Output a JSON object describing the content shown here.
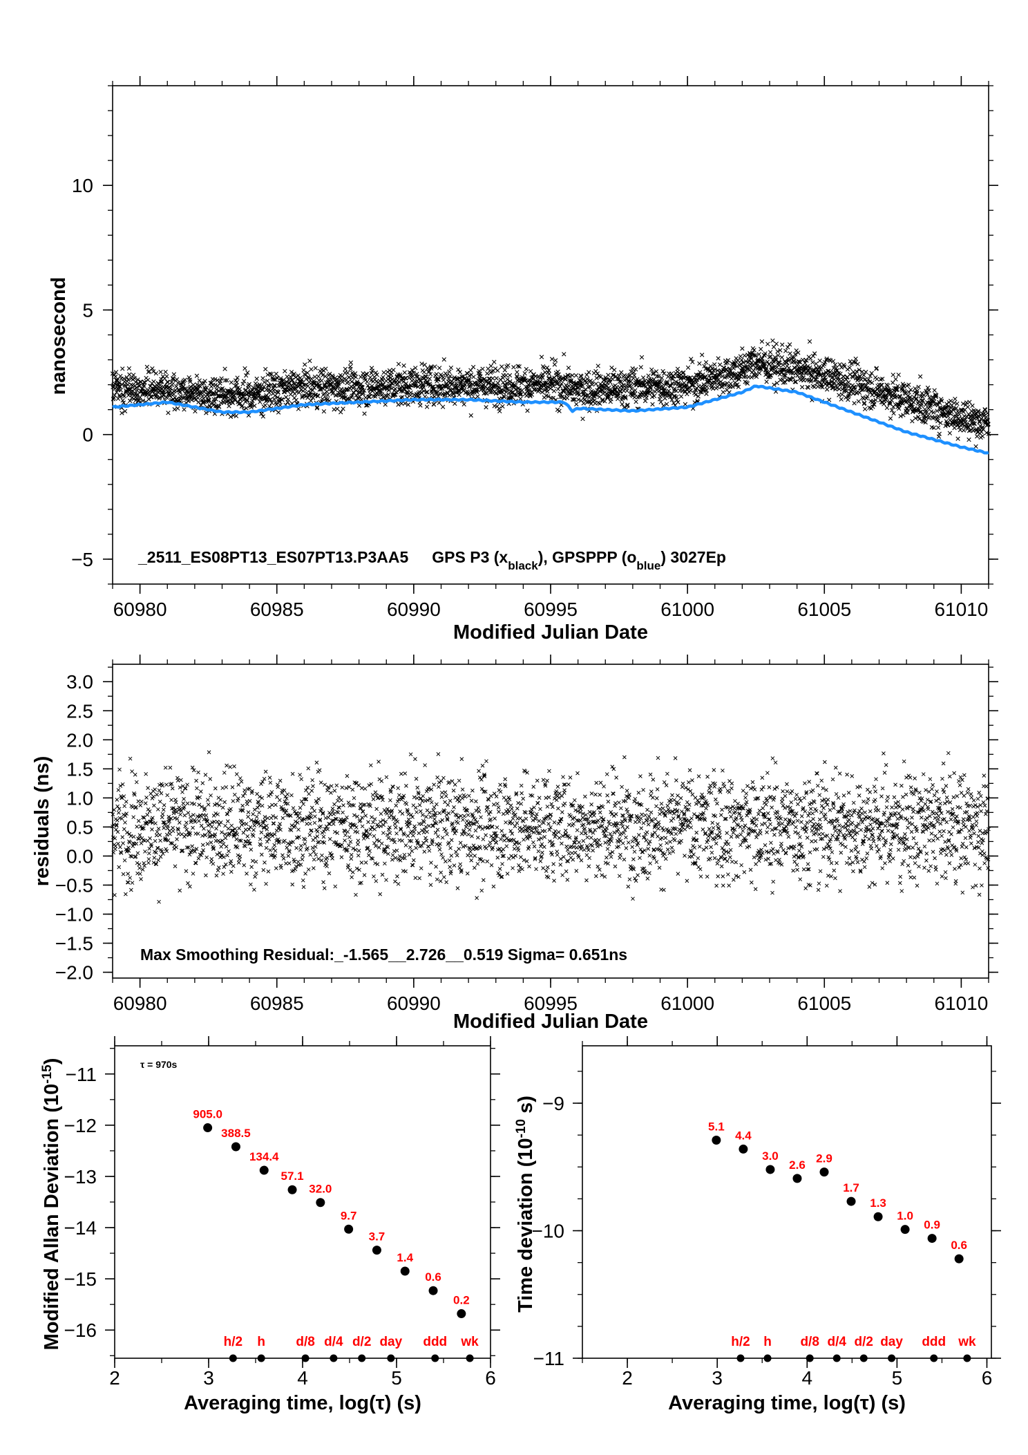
{
  "colors": {
    "black_series": "#000000",
    "blue_series": "#1e90ff",
    "label_red": "#ff0000"
  },
  "chart_data": [
    {
      "type": "scatter",
      "panel": "top",
      "annotation_name": "_2511_ES08PT13_ES07PT13.P3AA5",
      "annotation_p3": "GPS P3 (x",
      "annotation_p3_sub": "black",
      "annotation_ppp": "),  GPSPPP (o",
      "annotation_ppp_sub": "blue",
      "annotation_end": ")  3027Ep",
      "xlabel": "Modified Julian Date",
      "ylabel": "nanosecond",
      "xlim": [
        60979.0,
        61011.0
      ],
      "ylim": [
        -6.0,
        14.0
      ],
      "xticks": [
        60980,
        60985,
        60990,
        60995,
        61000,
        61005,
        61010
      ],
      "xtick_labels": [
        "60980",
        "60985",
        "60990",
        "60995",
        "61000",
        "61005",
        "61010"
      ],
      "yticks": [
        -5,
        0,
        5,
        10
      ],
      "ytick_labels": [
        "−5",
        "0",
        "5",
        "10"
      ],
      "series": [
        {
          "marker": "x",
          "color": "#000000",
          "x_range": [
            60979.0,
            61011.0
          ],
          "n_points": 3027,
          "trend_x": [
            60979.0,
            60981,
            60983,
            60984,
            60986,
            60988,
            60990,
            60992,
            60994,
            60995.5,
            60995.8,
            60996,
            60998,
            61000,
            61002,
            61002.5,
            61004,
            61006,
            61008,
            61010,
            61011.0
          ],
          "trend_y": [
            1.8,
            1.8,
            1.6,
            1.6,
            1.9,
            1.9,
            2.0,
            2.0,
            2.0,
            2.0,
            1.8,
            1.8,
            1.9,
            2.0,
            2.6,
            2.9,
            2.6,
            2.1,
            1.4,
            0.7,
            0.4
          ],
          "spread_sd": 0.55
        },
        {
          "marker": "line",
          "color": "#1e90ff",
          "x": [
            60979.0,
            60981,
            60981.5,
            60983,
            60984,
            60986,
            60988,
            60990,
            60992,
            60994,
            60995.5,
            60995.8,
            60996,
            60998,
            61000,
            61002,
            61002.5,
            61004,
            61006,
            61008,
            61010,
            61011.0
          ],
          "y": [
            1.1,
            1.3,
            1.2,
            0.9,
            0.9,
            1.2,
            1.3,
            1.4,
            1.4,
            1.3,
            1.3,
            0.95,
            1.05,
            0.95,
            1.1,
            1.7,
            1.95,
            1.7,
            0.9,
            0.1,
            -0.5,
            -0.75
          ]
        }
      ]
    },
    {
      "type": "scatter",
      "panel": "middle",
      "annotation": "Max Smoothing Residual:_-1.565__2.726__0.519  Sigma= 0.651ns",
      "xlabel": "Modified Julian Date",
      "ylabel": "residuals (ns)",
      "xlim": [
        60979.0,
        61011.0
      ],
      "ylim": [
        -2.1,
        3.3
      ],
      "xticks": [
        60980,
        60985,
        60990,
        60995,
        61000,
        61005,
        61010
      ],
      "xtick_labels": [
        "60980",
        "60985",
        "60990",
        "60995",
        "61000",
        "61005",
        "61010"
      ],
      "yticks": [
        -2.0,
        -1.5,
        -1.0,
        -0.5,
        0.0,
        0.5,
        1.0,
        1.5,
        2.0,
        2.5,
        3.0
      ],
      "ytick_labels": [
        "−2.0",
        "−1.5",
        "−1.0",
        "−0.5",
        "0.0",
        "0.5",
        "1.0",
        "1.5",
        "2.0",
        "2.5",
        "3.0"
      ],
      "series": [
        {
          "marker": "x",
          "color": "#000000",
          "n_points": 3027,
          "min": -1.565,
          "max": 2.726,
          "mean": 0.519,
          "sigma": 0.651
        }
      ]
    },
    {
      "type": "scatter",
      "panel": "bottom-left",
      "ylabel_main": "Modified Allan Deviation (10",
      "ylabel_sup": "-15",
      "ylabel_end": ")",
      "xlabel": "Averaging time, log(τ) (s)",
      "tau_note": "τ = 970s",
      "xlim": [
        2,
        6
      ],
      "ylim": [
        -16.55,
        -10.45
      ],
      "xticks": [
        2,
        3,
        4,
        5,
        6
      ],
      "xtick_labels": [
        "2",
        "3",
        "4",
        "5",
        "6"
      ],
      "yticks": [
        -16,
        -15,
        -14,
        -13,
        -12,
        -11
      ],
      "ytick_labels": [
        "−16",
        "−15",
        "−14",
        "−13",
        "−12",
        "−11"
      ],
      "points": [
        {
          "x": 2.99,
          "y": -12.05,
          "label": "905.0"
        },
        {
          "x": 3.29,
          "y": -12.42,
          "label": "388.5"
        },
        {
          "x": 3.59,
          "y": -12.88,
          "label": "134.4"
        },
        {
          "x": 3.89,
          "y": -13.26,
          "label": "57.1"
        },
        {
          "x": 4.19,
          "y": -13.51,
          "label": "32.0"
        },
        {
          "x": 4.49,
          "y": -14.03,
          "label": "9.7"
        },
        {
          "x": 4.79,
          "y": -14.44,
          "label": "3.7"
        },
        {
          "x": 5.09,
          "y": -14.85,
          "label": "1.4"
        },
        {
          "x": 5.39,
          "y": -15.23,
          "label": "0.6"
        },
        {
          "x": 5.69,
          "y": -15.68,
          "label": "0.2"
        }
      ],
      "markers": [
        {
          "x": 3.26,
          "label": "h/2"
        },
        {
          "x": 3.56,
          "label": "h"
        },
        {
          "x": 4.03,
          "label": "d/8"
        },
        {
          "x": 4.33,
          "label": "d/4"
        },
        {
          "x": 4.63,
          "label": "d/2"
        },
        {
          "x": 4.94,
          "label": "day"
        },
        {
          "x": 5.41,
          "label": "ddd"
        },
        {
          "x": 5.78,
          "label": "wk"
        }
      ]
    },
    {
      "type": "scatter",
      "panel": "bottom-right",
      "ylabel_main": "Time deviation (10",
      "ylabel_sup": "-10",
      "ylabel_end": " s)",
      "xlabel": "Averaging time, log(τ) (s)",
      "xlim": [
        1.5,
        6.05
      ],
      "ylim": [
        -11.0,
        -8.55
      ],
      "xticks": [
        2,
        3,
        4,
        5,
        6
      ],
      "xtick_labels": [
        "2",
        "3",
        "4",
        "5",
        "6"
      ],
      "yticks": [
        -11,
        -10,
        -9
      ],
      "ytick_labels": [
        "−11",
        "−10",
        "−9"
      ],
      "points": [
        {
          "x": 2.99,
          "y": -9.29,
          "label": "5.1"
        },
        {
          "x": 3.29,
          "y": -9.36,
          "label": "4.4"
        },
        {
          "x": 3.59,
          "y": -9.52,
          "label": "3.0"
        },
        {
          "x": 3.89,
          "y": -9.59,
          "label": "2.6"
        },
        {
          "x": 4.19,
          "y": -9.54,
          "label": "2.9"
        },
        {
          "x": 4.49,
          "y": -9.77,
          "label": "1.7"
        },
        {
          "x": 4.79,
          "y": -9.89,
          "label": "1.3"
        },
        {
          "x": 5.09,
          "y": -9.99,
          "label": "1.0"
        },
        {
          "x": 5.39,
          "y": -10.06,
          "label": "0.9"
        },
        {
          "x": 5.69,
          "y": -10.22,
          "label": "0.6"
        }
      ],
      "markers": [
        {
          "x": 3.26,
          "label": "h/2"
        },
        {
          "x": 3.56,
          "label": "h"
        },
        {
          "x": 4.03,
          "label": "d/8"
        },
        {
          "x": 4.33,
          "label": "d/4"
        },
        {
          "x": 4.63,
          "label": "d/2"
        },
        {
          "x": 4.94,
          "label": "day"
        },
        {
          "x": 5.41,
          "label": "ddd"
        },
        {
          "x": 5.78,
          "label": "wk"
        }
      ]
    }
  ]
}
